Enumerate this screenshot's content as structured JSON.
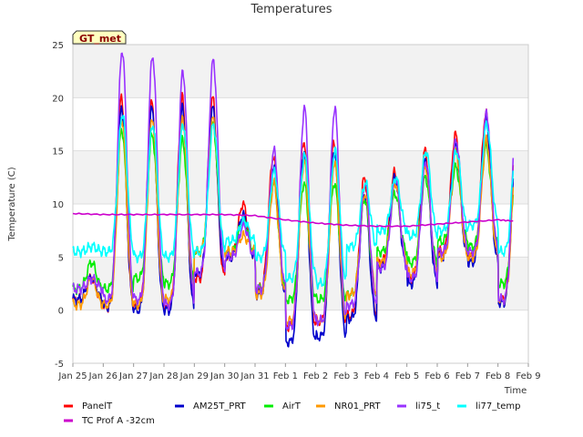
{
  "chart_data": {
    "type": "line",
    "title": "Temperatures",
    "xlabel": "Time",
    "ylabel": "Temperature (C)",
    "badge": "GT_met",
    "ylim": [
      -5,
      25
    ],
    "xlim": [
      0,
      15
    ],
    "yticks": [
      -5,
      0,
      5,
      10,
      15,
      20,
      25
    ],
    "xtick_labels": [
      "Jan 25",
      "Jan 26",
      "Jan 27",
      "Jan 28",
      "Jan 29",
      "Jan 30",
      "Jan 31",
      "Feb 1",
      "Feb 2",
      "Feb 3",
      "Feb 4",
      "Feb 5",
      "Feb 6",
      "Feb 7",
      "Feb 8",
      "Feb 9"
    ],
    "grid": true,
    "legend_position": "bottom",
    "daily_peaks_air": [
      [
        0.0,
        2.0,
        4.5
      ],
      [
        1.0,
        0.5,
        19.0
      ],
      [
        2.0,
        0.5,
        19.0
      ],
      [
        3.0,
        0.2,
        20.0
      ],
      [
        4.0,
        3.0,
        19.5
      ],
      [
        5.0,
        5.0,
        9.0
      ],
      [
        6.0,
        2.0,
        14.0
      ],
      [
        7.0,
        -2.0,
        17.0
      ],
      [
        8.0,
        -2.0,
        16.5
      ],
      [
        9.0,
        0.5,
        12.0
      ],
      [
        10.0,
        4.5,
        12.5
      ],
      [
        11.0,
        3.0,
        14.5
      ],
      [
        12.0,
        5.5,
        16.0
      ],
      [
        13.0,
        5.0,
        18.5
      ],
      [
        14.0,
        1.0,
        17.0
      ],
      [
        14.5,
        3.0,
        4.0
      ]
    ],
    "series": [
      {
        "name": "PanelT",
        "color": "#ff0000",
        "min": [
          1.0,
          0.3,
          0.5,
          0.2,
          3.0,
          5.0,
          2.0,
          -1.5,
          -1.0,
          -0.5,
          4.5,
          3.0,
          5.5,
          5.0,
          1.0,
          3.0
        ],
        "max": [
          3.0,
          20.0,
          19.5,
          20.0,
          20.0,
          10.0,
          14.5,
          16.0,
          16.0,
          12.5,
          13.0,
          15.0,
          16.5,
          18.5,
          16.5,
          4.0
        ]
      },
      {
        "name": "AM25T_PRT",
        "color": "#0000cc",
        "min": [
          1.0,
          0.3,
          0.0,
          0.0,
          3.5,
          5.0,
          1.5,
          -3.0,
          -2.5,
          -0.8,
          4.0,
          2.5,
          5.0,
          4.5,
          0.7,
          2.7
        ],
        "max": [
          3.0,
          19.0,
          19.0,
          19.0,
          19.0,
          9.0,
          13.5,
          15.0,
          15.0,
          11.0,
          12.5,
          14.0,
          15.5,
          18.0,
          15.5,
          3.5
        ]
      },
      {
        "name": "AirT",
        "color": "#00ee00",
        "min": [
          2.0,
          2.0,
          3.0,
          2.5,
          5.5,
          5.5,
          2.0,
          1.0,
          1.0,
          1.5,
          5.5,
          4.5,
          6.5,
          6.0,
          2.5,
          6.0
        ],
        "max": [
          4.5,
          17.0,
          16.5,
          16.0,
          17.5,
          8.5,
          12.0,
          12.0,
          12.0,
          10.5,
          11.0,
          12.5,
          13.5,
          15.5,
          13.5,
          6.5
        ]
      },
      {
        "name": "NR01_PRT",
        "color": "#ff9900",
        "min": [
          0.5,
          0.5,
          0.5,
          1.0,
          5.5,
          5.5,
          1.5,
          -1.0,
          -1.0,
          1.5,
          4.5,
          3.5,
          5.0,
          5.0,
          1.0,
          3.0
        ],
        "max": [
          3.0,
          18.0,
          18.0,
          18.0,
          18.0,
          7.0,
          12.0,
          14.0,
          14.0,
          11.0,
          12.0,
          13.5,
          15.0,
          16.0,
          15.5,
          3.5
        ]
      },
      {
        "name": "li75_t",
        "color": "#9933ff",
        "min": [
          2.0,
          1.0,
          1.0,
          0.5,
          3.5,
          5.0,
          2.0,
          -1.5,
          -1.0,
          0.5,
          4.0,
          3.0,
          5.5,
          5.5,
          1.0,
          3.0
        ],
        "max": [
          3.0,
          24.5,
          24.0,
          22.5,
          23.5,
          8.0,
          15.0,
          19.0,
          19.0,
          12.0,
          12.5,
          14.0,
          16.0,
          18.5,
          20.0,
          3.5
        ]
      },
      {
        "name": "li77_temp",
        "color": "#00ffff",
        "min": [
          5.5,
          5.5,
          5.0,
          5.0,
          5.5,
          6.5,
          5.0,
          3.0,
          2.5,
          6.0,
          7.5,
          7.0,
          7.5,
          8.0,
          5.5,
          7.5
        ],
        "max": [
          6.0,
          18.5,
          17.5,
          17.5,
          17.5,
          8.5,
          13.0,
          14.5,
          15.0,
          12.0,
          12.5,
          15.0,
          15.0,
          17.5,
          17.0,
          8.0
        ]
      },
      {
        "name": "TC Prof A -32cm",
        "color": "#cc00cc",
        "x": [
          0,
          1,
          2,
          3,
          4,
          5,
          6,
          7,
          8,
          9,
          10,
          11,
          12,
          13,
          14,
          14.5
        ],
        "y": [
          9.1,
          9.0,
          9.0,
          9.0,
          9.0,
          9.0,
          8.9,
          8.5,
          8.2,
          8.0,
          7.9,
          7.9,
          8.1,
          8.3,
          8.5,
          8.4
        ]
      }
    ]
  }
}
